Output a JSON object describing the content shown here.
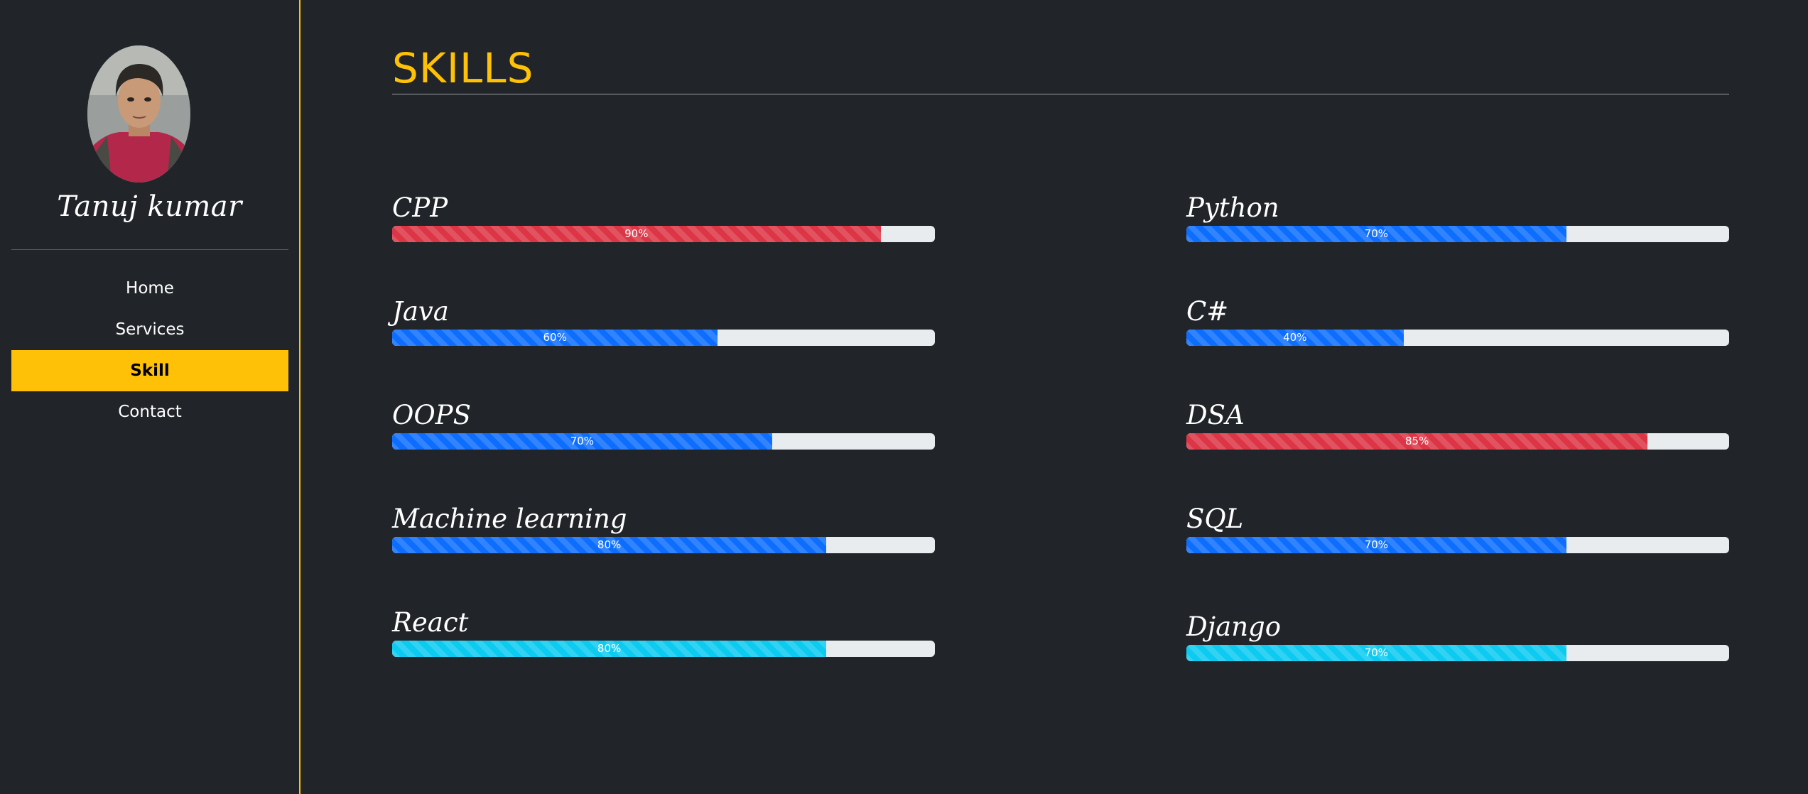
{
  "colors": {
    "background": "#212529",
    "accent": "#ffc107",
    "danger": "#dc3545",
    "primary": "#0d6efd",
    "info": "#0dcaf0",
    "track": "#e9ecef"
  },
  "sidebar": {
    "name": "Tanuj kumar",
    "nav": [
      {
        "label": "Home",
        "active": false
      },
      {
        "label": "Services",
        "active": false
      },
      {
        "label": "Skill",
        "active": true
      },
      {
        "label": "Contact",
        "active": false
      }
    ]
  },
  "main": {
    "title": "SKILLS",
    "skills": [
      {
        "name": "CPP",
        "percent": 90,
        "label": "90%",
        "color": "#dc3545"
      },
      {
        "name": "Python",
        "percent": 70,
        "label": "70%",
        "color": "#0d6efd"
      },
      {
        "name": "Java",
        "percent": 60,
        "label": "60%",
        "color": "#0d6efd"
      },
      {
        "name": "C#",
        "percent": 40,
        "label": "40%",
        "color": "#0d6efd"
      },
      {
        "name": "OOPS",
        "percent": 70,
        "label": "70%",
        "color": "#0d6efd"
      },
      {
        "name": "DSA",
        "percent": 85,
        "label": "85%",
        "color": "#dc3545"
      },
      {
        "name": "Machine learning",
        "percent": 80,
        "label": "80%",
        "color": "#0d6efd"
      },
      {
        "name": "SQL",
        "percent": 70,
        "label": "70%",
        "color": "#0d6efd"
      },
      {
        "name": "React",
        "percent": 80,
        "label": "80%",
        "color": "#0dcaf0"
      },
      {
        "name": "Django",
        "percent": 70,
        "label": "70%",
        "color": "#0dcaf0"
      }
    ]
  }
}
